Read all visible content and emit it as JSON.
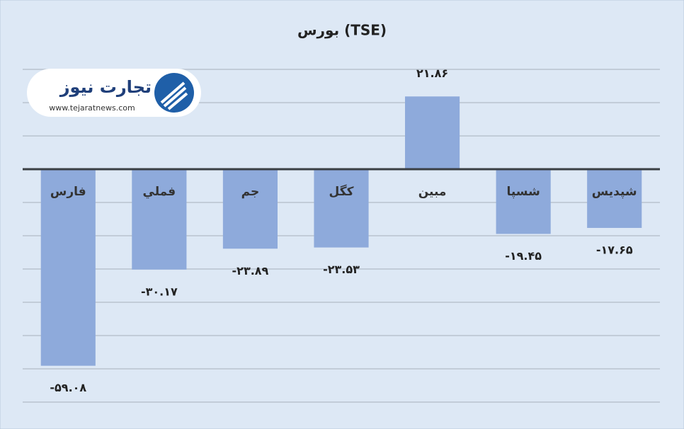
{
  "chart_data": {
    "type": "bar",
    "title": "بورس (TSE)",
    "categories": [
      "فارس",
      "فملي",
      "جم",
      "کگل",
      "مبين",
      "شسپا",
      "شپديس"
    ],
    "values": [
      -59.08,
      -30.17,
      -23.89,
      -23.53,
      21.86,
      -19.45,
      -17.65
    ],
    "value_labels": [
      "-۵۹.۰۸",
      "-۳۰.۱۷",
      "-۲۳.۸۹",
      "-۲۳.۵۳",
      "۲۱.۸۶",
      "-۱۹.۴۵",
      "-۱۷.۶۵"
    ],
    "color": "#8eaadb",
    "ylim": [
      -70,
      30
    ],
    "yticks": [
      -70,
      -60,
      -50,
      -40,
      -30,
      -20,
      -10,
      0,
      10,
      20,
      30
    ],
    "grid": true,
    "tick_labels": false
  },
  "watermark": {
    "name": "تجارت نیوز",
    "url": "www.tejaratnews.com"
  }
}
